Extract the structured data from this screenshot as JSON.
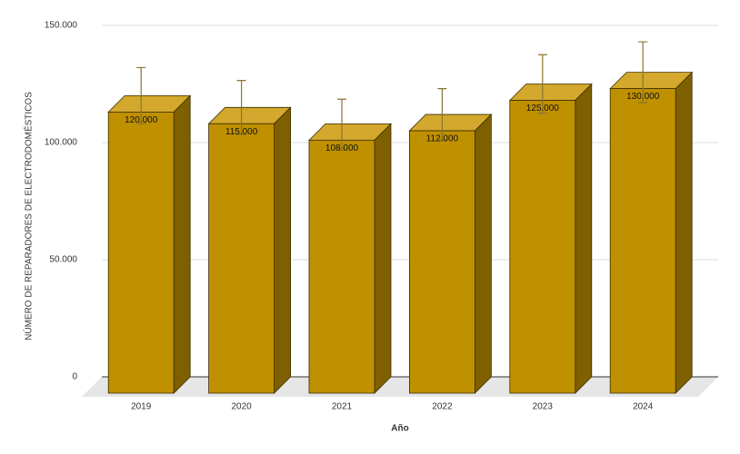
{
  "chart_data": {
    "type": "bar3d",
    "y_label": "NÚMERO DE REPARADORES DE ELECTRODOMÉSTICOS",
    "x_label": "Año",
    "categories": [
      "2019",
      "2020",
      "2021",
      "2022",
      "2023",
      "2024"
    ],
    "values": [
      120000,
      115000,
      108000,
      112000,
      125000,
      130000
    ],
    "value_labels": [
      "120.000",
      "115.000",
      "108.000",
      "112.000",
      "125.000",
      "130.000"
    ],
    "errors": [
      12000,
      11500,
      10500,
      11000,
      12500,
      13000
    ],
    "color": "#bf9000",
    "ylim": [
      0,
      150000
    ],
    "yticks": [
      {
        "value": 0,
        "label": "0"
      },
      {
        "value": 50000,
        "label": "50.000"
      },
      {
        "value": 100000,
        "label": "100.000"
      },
      {
        "value": 150000,
        "label": "150.000"
      }
    ],
    "grid": true
  }
}
